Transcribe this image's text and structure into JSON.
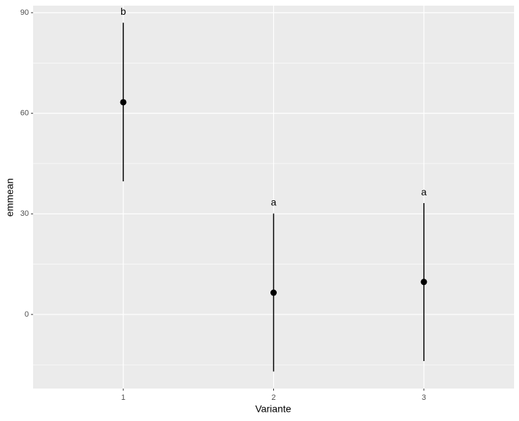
{
  "chart_data": {
    "type": "pointrange",
    "x_label": "Variante",
    "y_label": "emmean",
    "categories": [
      "1",
      "2",
      "3"
    ],
    "values": [
      63.3,
      6.5,
      9.7
    ],
    "lower": [
      39.7,
      -17.0,
      -13.9
    ],
    "upper": [
      87.0,
      30.1,
      33.2
    ],
    "group_labels": [
      "b",
      "a",
      "a"
    ],
    "color": "#000000",
    "ylim": [
      -22.1,
      92.1
    ],
    "yticks": [
      0,
      30,
      60,
      90
    ],
    "grid": true
  }
}
